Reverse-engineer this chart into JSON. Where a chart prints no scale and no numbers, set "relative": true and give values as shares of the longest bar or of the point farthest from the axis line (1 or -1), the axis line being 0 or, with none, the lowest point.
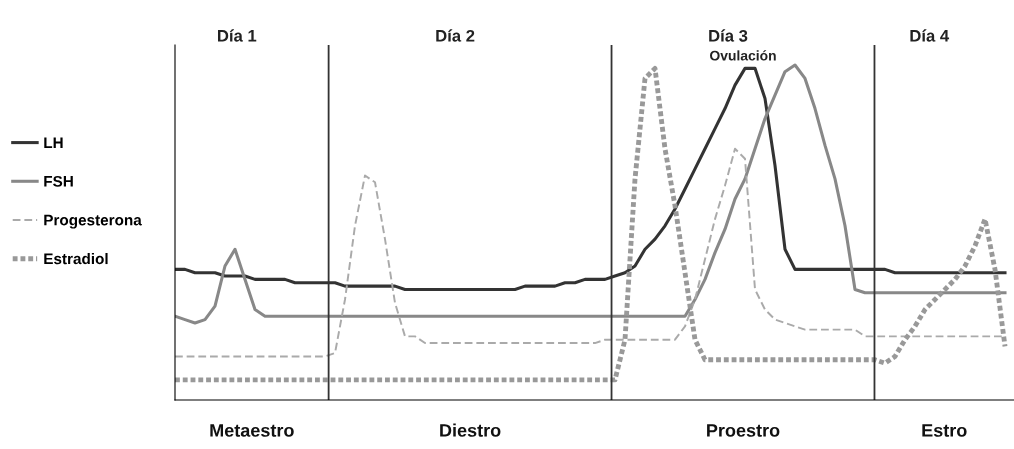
{
  "chart_data": {
    "type": "line",
    "relative": true,
    "legend": "left",
    "marker": "none",
    "categories": [
      null,
      null,
      null,
      null,
      null,
      null,
      null,
      null,
      null,
      null,
      null,
      null,
      null,
      null,
      null,
      null,
      null,
      null,
      null,
      null,
      null,
      null,
      null,
      null,
      null,
      null,
      null,
      null,
      null,
      null,
      null,
      null,
      null,
      null,
      null,
      null,
      null,
      null,
      null,
      null,
      null,
      null,
      null,
      null,
      null,
      null,
      null,
      null,
      null,
      null,
      null,
      null,
      null,
      null,
      null,
      null,
      null,
      null,
      null,
      null,
      null,
      null,
      null,
      null,
      null,
      null,
      null,
      null,
      null,
      null,
      null,
      null,
      null,
      null,
      null,
      null,
      null,
      null,
      null,
      null,
      null,
      null,
      null,
      null
    ],
    "series": [
      {
        "name": "LH",
        "color": "#333333",
        "line_style": "solid",
        "values": [
          0.39,
          0.39,
          0.38,
          0.38,
          0.38,
          0.37,
          0.37,
          0.37,
          0.36,
          0.36,
          0.36,
          0.36,
          0.35,
          0.35,
          0.35,
          0.35,
          0.35,
          0.34,
          0.34,
          0.34,
          0.34,
          0.34,
          0.34,
          0.33,
          0.33,
          0.33,
          0.33,
          0.33,
          0.33,
          0.33,
          0.33,
          0.33,
          0.33,
          0.33,
          0.33,
          0.34,
          0.34,
          0.34,
          0.34,
          0.35,
          0.35,
          0.36,
          0.36,
          0.36,
          0.37,
          0.38,
          0.4,
          0.45,
          0.48,
          0.52,
          0.57,
          0.63,
          0.69,
          0.75,
          0.81,
          0.87,
          0.94,
          0.99,
          0.99,
          0.9,
          0.7,
          0.45,
          0.39,
          0.39,
          0.39,
          0.39,
          0.39,
          0.39,
          0.39,
          0.39,
          0.39,
          0.39,
          0.38,
          0.38,
          0.38,
          0.38,
          0.38,
          0.38,
          0.38,
          0.38,
          0.38,
          0.38,
          0.38,
          0.38
        ]
      },
      {
        "name": "FSH",
        "color": "#888888",
        "line_style": "solid",
        "values": [
          0.25,
          0.24,
          0.23,
          0.24,
          0.28,
          0.4,
          0.45,
          0.36,
          0.27,
          0.25,
          0.25,
          0.25,
          0.25,
          0.25,
          0.25,
          0.25,
          0.25,
          0.25,
          0.25,
          0.25,
          0.25,
          0.25,
          0.25,
          0.25,
          0.25,
          0.25,
          0.25,
          0.25,
          0.25,
          0.25,
          0.25,
          0.25,
          0.25,
          0.25,
          0.25,
          0.25,
          0.25,
          0.25,
          0.25,
          0.25,
          0.25,
          0.25,
          0.25,
          0.25,
          0.25,
          0.25,
          0.25,
          0.25,
          0.25,
          0.25,
          0.25,
          0.25,
          0.3,
          0.36,
          0.44,
          0.51,
          0.6,
          0.66,
          0.75,
          0.84,
          0.91,
          0.98,
          1.0,
          0.96,
          0.87,
          0.76,
          0.66,
          0.52,
          0.33,
          0.32,
          0.32,
          0.32,
          0.32,
          0.32,
          0.32,
          0.32,
          0.32,
          0.32,
          0.32,
          0.32,
          0.32,
          0.32,
          0.32,
          0.32
        ]
      },
      {
        "name": "Progesterona",
        "color": "#aaaaaa",
        "line_style": "dashed",
        "values": [
          0.13,
          0.13,
          0.13,
          0.13,
          0.13,
          0.13,
          0.13,
          0.13,
          0.13,
          0.13,
          0.13,
          0.13,
          0.13,
          0.13,
          0.13,
          0.13,
          0.14,
          0.3,
          0.52,
          0.67,
          0.65,
          0.48,
          0.29,
          0.19,
          0.19,
          0.17,
          0.17,
          0.17,
          0.17,
          0.17,
          0.17,
          0.17,
          0.17,
          0.17,
          0.17,
          0.17,
          0.17,
          0.17,
          0.17,
          0.17,
          0.17,
          0.17,
          0.17,
          0.18,
          0.18,
          0.18,
          0.18,
          0.18,
          0.18,
          0.18,
          0.18,
          0.22,
          0.3,
          0.42,
          0.54,
          0.64,
          0.75,
          0.72,
          0.33,
          0.27,
          0.24,
          0.23,
          0.22,
          0.21,
          0.21,
          0.21,
          0.21,
          0.21,
          0.21,
          0.19,
          0.19,
          0.19,
          0.19,
          0.19,
          0.19,
          0.19,
          0.19,
          0.19,
          0.19,
          0.19,
          0.19,
          0.19,
          0.19,
          0.19
        ]
      },
      {
        "name": "Estradiol",
        "color": "#999999",
        "line_style": "dotted",
        "values": [
          0.06,
          0.06,
          0.06,
          0.06,
          0.06,
          0.06,
          0.06,
          0.06,
          0.06,
          0.06,
          0.06,
          0.06,
          0.06,
          0.06,
          0.06,
          0.06,
          0.06,
          0.06,
          0.06,
          0.06,
          0.06,
          0.06,
          0.06,
          0.06,
          0.06,
          0.06,
          0.06,
          0.06,
          0.06,
          0.06,
          0.06,
          0.06,
          0.06,
          0.06,
          0.06,
          0.06,
          0.06,
          0.06,
          0.06,
          0.06,
          0.06,
          0.06,
          0.06,
          0.06,
          0.06,
          0.18,
          0.66,
          0.96,
          0.99,
          0.75,
          0.58,
          0.38,
          0.18,
          0.12,
          0.12,
          0.12,
          0.12,
          0.12,
          0.12,
          0.12,
          0.12,
          0.12,
          0.12,
          0.12,
          0.12,
          0.12,
          0.12,
          0.12,
          0.12,
          0.12,
          0.12,
          0.11,
          0.13,
          0.18,
          0.22,
          0.27,
          0.3,
          0.33,
          0.36,
          0.4,
          0.46,
          0.54,
          0.39,
          0.16
        ]
      }
    ],
    "annotations": [
      "Día 1",
      "Día 2",
      "Día 3",
      "Día 4",
      "Ovulación",
      "Metaestro",
      "Diestro",
      "Proestro",
      "Estro"
    ]
  }
}
